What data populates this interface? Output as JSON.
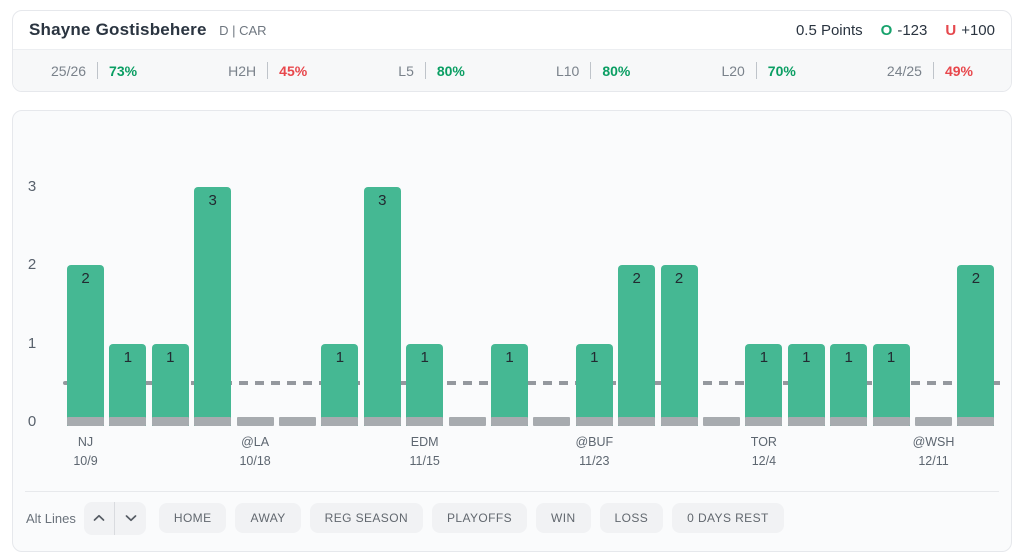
{
  "header": {
    "player_name": "Shayne Gostisbehere",
    "position_team": "D | CAR",
    "line_label": "0.5 Points",
    "over_letter": "O",
    "over_odds": "-123",
    "under_letter": "U",
    "under_odds": "+100"
  },
  "stats": [
    {
      "label": "25/26",
      "value": "73%",
      "trend": "green"
    },
    {
      "label": "H2H",
      "value": "45%",
      "trend": "red"
    },
    {
      "label": "L5",
      "value": "80%",
      "trend": "green"
    },
    {
      "label": "L10",
      "value": "80%",
      "trend": "green"
    },
    {
      "label": "L20",
      "value": "70%",
      "trend": "green"
    },
    {
      "label": "24/25",
      "value": "49%",
      "trend": "red"
    }
  ],
  "chart_data": {
    "type": "bar",
    "title": "",
    "ylabel": "Points",
    "values": [
      2,
      1,
      1,
      3,
      0,
      0,
      1,
      3,
      1,
      0,
      1,
      0,
      1,
      2,
      2,
      0,
      1,
      1,
      1,
      1,
      0,
      2
    ],
    "y_ticks": [
      0,
      1,
      2,
      3
    ],
    "ylim": [
      0,
      3.5
    ],
    "threshold": 0.5,
    "threshold_style": "dashed",
    "grid": false,
    "x_tick_labels": [
      {
        "index": 0,
        "line1": "NJ",
        "line2": "10/9"
      },
      {
        "index": 4,
        "line1": "@LA",
        "line2": "10/18"
      },
      {
        "index": 8,
        "line1": "EDM",
        "line2": "11/15"
      },
      {
        "index": 12,
        "line1": "@BUF",
        "line2": "11/23"
      },
      {
        "index": 16,
        "line1": "TOR",
        "line2": "12/4"
      },
      {
        "index": 20,
        "line1": "@WSH",
        "line2": "12/11"
      }
    ],
    "colors": {
      "bar": "#45B893",
      "zero_bar": "#A7ABAF",
      "threshold_line": "#94989E",
      "value_label": "#222A31"
    }
  },
  "controls": {
    "alt_lines_label": "Alt Lines",
    "filters": [
      "HOME",
      "AWAY",
      "REG SEASON",
      "PLAYOFFS",
      "WIN",
      "LOSS",
      "0 DAYS REST"
    ]
  },
  "colors": {
    "accent_green": "#0A9E63",
    "accent_red": "#E5484D"
  }
}
